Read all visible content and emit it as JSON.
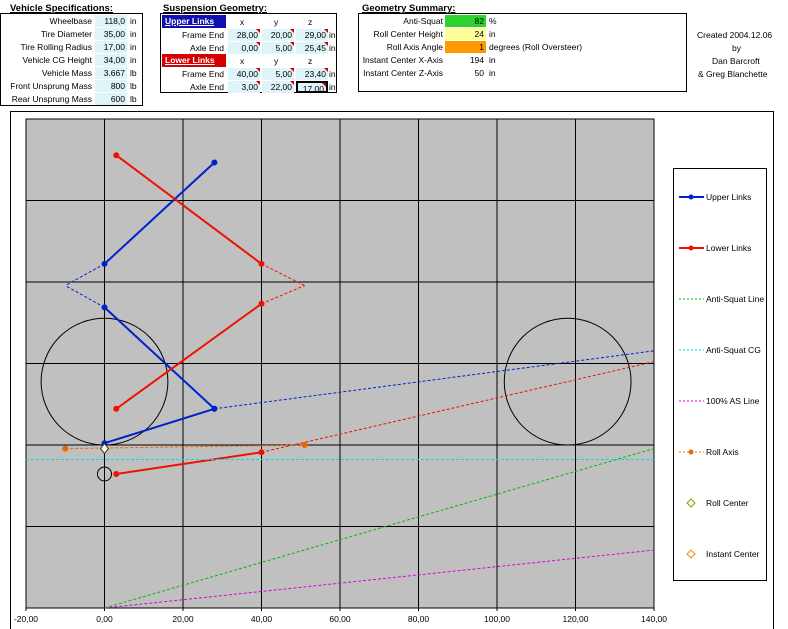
{
  "vehicle": {
    "title": "Vehicle Specifications:",
    "rows": [
      {
        "label": "Wheelbase",
        "value": "118,0",
        "unit": "in"
      },
      {
        "label": "Tire Diameter",
        "value": "35,00",
        "unit": "in"
      },
      {
        "label": "Tire Rolling Radius",
        "value": "17,00",
        "unit": "in"
      },
      {
        "label": "Vehicle CG Height",
        "value": "34,00",
        "unit": "in"
      },
      {
        "label": "Vehicle Mass",
        "value": "3.667",
        "unit": "lb"
      },
      {
        "label": "Front Unsprung Mass",
        "value": "800",
        "unit": "lb"
      },
      {
        "label": "Rear Unsprung Mass",
        "value": "600",
        "unit": "lb"
      }
    ]
  },
  "suspension": {
    "title": "Suspension Geometry:",
    "upper_header": "Upper Links",
    "lower_header": "Lower Links",
    "cols": [
      "x",
      "y",
      "z"
    ],
    "unit": "in",
    "upper": [
      {
        "label": "Frame End",
        "values": [
          "28,00",
          "20,00",
          "29,00"
        ]
      },
      {
        "label": "Axle End",
        "values": [
          "0,00",
          "5,00",
          "25,45"
        ]
      }
    ],
    "lower": [
      {
        "label": "Frame End",
        "values": [
          "40,00",
          "5,00",
          "23,40"
        ]
      },
      {
        "label": "Axle End",
        "values": [
          "3,00",
          "22,00",
          "17,00"
        ]
      }
    ]
  },
  "summary": {
    "title": "Geometry Summary:",
    "rows": [
      {
        "label": "Anti-Squat",
        "value": "82",
        "unit": "%",
        "color": "#2fd12f"
      },
      {
        "label": "Roll Center Height",
        "value": "24",
        "unit": "in",
        "color": "#ffff99"
      },
      {
        "label": "Roll Axis Angle",
        "value": "1",
        "unit": "degrees (Roll Oversteer)",
        "color": "#ff9900"
      },
      {
        "label": "Instant Center X-Axis",
        "value": "194",
        "unit": "in",
        "color": ""
      },
      {
        "label": "Instant Center Z-Axis",
        "value": "50",
        "unit": "in",
        "color": ""
      }
    ]
  },
  "credits": {
    "created": "Created 2004.12.06",
    "by": "by",
    "author1": "Dan Barcroft",
    "author2": "& Greg Blanchette"
  },
  "chart_data": {
    "type": "scatter",
    "xlim": [
      -20,
      140
    ],
    "ylim": [
      -45,
      90
    ],
    "x_ticks": [
      "-20,00",
      "0,00",
      "20,00",
      "40,00",
      "60,00",
      "80,00",
      "100,00",
      "120,00",
      "140,00"
    ],
    "grid": true,
    "legend_position": "right",
    "series": [
      {
        "name": "Upper Links",
        "color": "#0022cc",
        "style": "solid",
        "marker": "dot",
        "segments": [
          [
            [
              0,
              0.5
            ],
            [
              28,
              10
            ]
          ],
          [
            [
              0,
              50
            ],
            [
              28,
              78
            ]
          ],
          [
            [
              0,
              38
            ],
            [
              28,
              10
            ]
          ]
        ]
      },
      {
        "name": "Lower Links",
        "color": "#ee1100",
        "style": "solid",
        "marker": "dot",
        "segments": [
          [
            [
              3,
              -8
            ],
            [
              40,
              -2
            ]
          ],
          [
            [
              3,
              80
            ],
            [
              40,
              50
            ]
          ],
          [
            [
              3,
              10
            ],
            [
              40,
              39
            ]
          ]
        ]
      },
      {
        "name": "Anti-Squat Line",
        "color": "#00bb00",
        "style": "dashed",
        "marker": "none",
        "segments": [
          [
            [
              0,
              -45
            ],
            [
              140,
              -1
            ]
          ]
        ]
      },
      {
        "name": "Anti-Squat CG",
        "color": "#00dddd",
        "style": "dashed",
        "marker": "none",
        "segments": [
          [
            [
              -20,
              -4
            ],
            [
              140,
              -4
            ]
          ]
        ]
      },
      {
        "name": "100% AS Line",
        "color": "#dd00dd",
        "style": "dashed",
        "marker": "none",
        "segments": [
          [
            [
              0,
              -45
            ],
            [
              140,
              -29
            ]
          ]
        ]
      },
      {
        "name": "Roll Axis",
        "color": "#ee6600",
        "style": "dashed",
        "marker": "dot",
        "segments": [
          [
            [
              -10,
              -1
            ],
            [
              51,
              0
            ]
          ]
        ]
      },
      {
        "name": "Roll Center",
        "color": "#999900",
        "style": "none",
        "marker": "diamond",
        "points": [
          [
            0,
            -1
          ]
        ]
      },
      {
        "name": "Instant Center",
        "color": "#ff8800",
        "style": "none",
        "marker": "diamond-open",
        "points": []
      }
    ],
    "dashed_extensions": [
      {
        "color": "#0022cc",
        "from": [
          28,
          10
        ],
        "to": [
          140,
          26
        ]
      },
      {
        "color": "#ee1100",
        "from": [
          40,
          -2
        ],
        "to": [
          140,
          23
        ]
      },
      {
        "color": "#0022cc",
        "from": [
          0,
          50
        ],
        "to": [
          -10,
          44
        ]
      },
      {
        "color": "#0022cc",
        "from": [
          0,
          38
        ],
        "to": [
          -10,
          44
        ]
      },
      {
        "color": "#ee1100",
        "from": [
          40,
          50
        ],
        "to": [
          51,
          44
        ]
      },
      {
        "color": "#ee1100",
        "from": [
          40,
          39
        ],
        "to": [
          51,
          44
        ]
      }
    ],
    "wheels": [
      {
        "cx": 0,
        "cy": 17.5,
        "r": 17.5
      },
      {
        "cx": 118,
        "cy": 17.5,
        "r": 17.5
      }
    ]
  }
}
